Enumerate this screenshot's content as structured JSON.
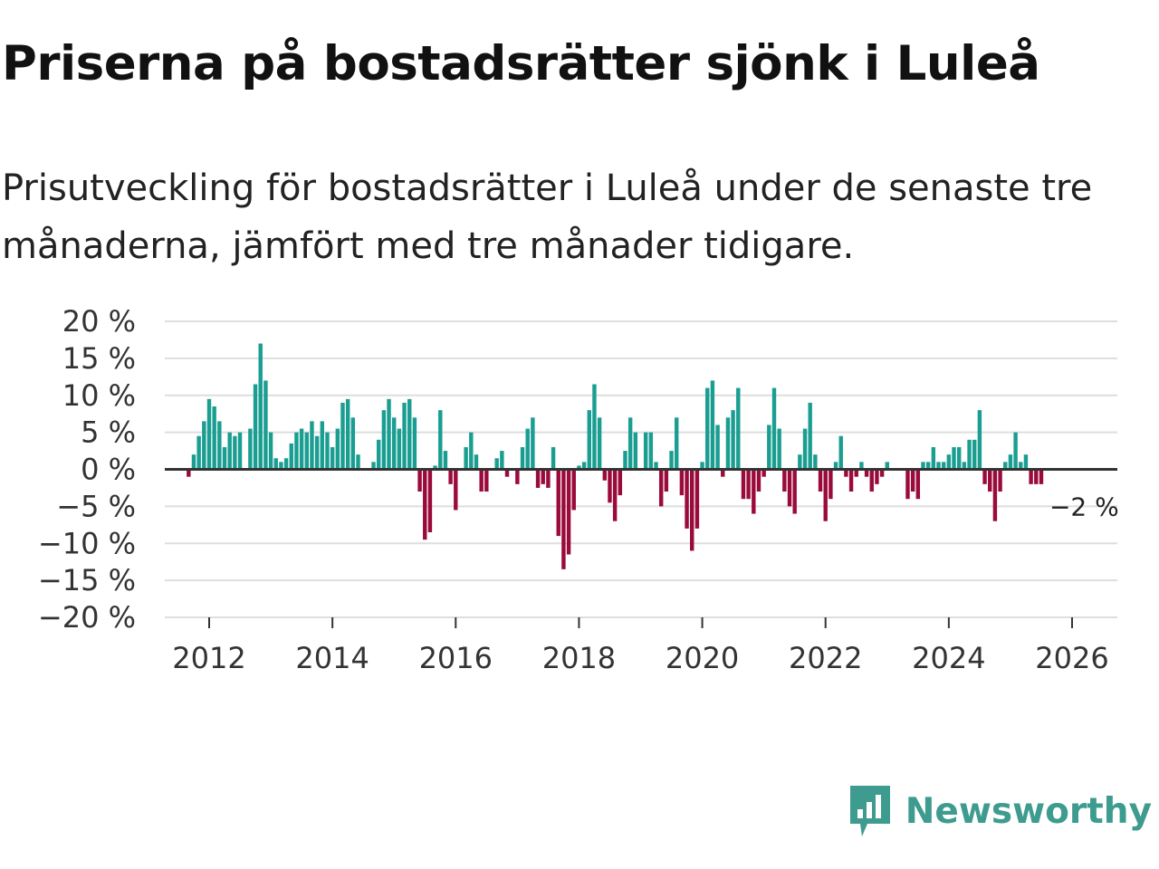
{
  "header": {
    "title": "Priserna på bostadsrätter sjönk i Luleå",
    "subtitle": "Prisutveckling för bostadsrätter i Luleå under de senaste tre månaderna, jämfört med tre månader tidigare."
  },
  "brand": {
    "name": "Newsworthy",
    "icon": "newsworthy-logo-icon"
  },
  "colors": {
    "positive": "#1a9e92",
    "negative": "#9a0b3c",
    "grid": "#dedede",
    "axis": "#333333",
    "brand": "#3e9b8f"
  },
  "chart_data": {
    "type": "bar",
    "title": "Priserna på bostadsrätter sjönk i Luleå",
    "xlabel": "",
    "ylabel": "",
    "ylim": [
      -20,
      20
    ],
    "y_ticks": [
      20,
      15,
      10,
      5,
      0,
      -5,
      -10,
      -15,
      -20
    ],
    "y_tick_labels": [
      "20 %",
      "15 %",
      "10 %",
      "5 %",
      "0 %",
      "−5 %",
      "−10 %",
      "−15 %",
      "−20 %"
    ],
    "x_ticks": [
      2012,
      2014,
      2016,
      2018,
      2020,
      2022,
      2024,
      2026
    ],
    "x_tick_labels": [
      "2012",
      "2014",
      "2016",
      "2018",
      "2020",
      "2022",
      "2024",
      "2026"
    ],
    "x_start": "2011-09",
    "frequency": "monthly",
    "last_label": "−2 %",
    "values": [
      -1,
      2,
      4.5,
      6.5,
      9.5,
      8.5,
      6.5,
      3,
      5,
      4.5,
      5,
      0,
      5.5,
      11.5,
      17,
      12,
      5,
      1.5,
      1,
      1.5,
      3.5,
      5,
      5.5,
      5,
      6.5,
      4.5,
      6.5,
      5,
      3,
      5.5,
      9,
      9.5,
      7,
      2,
      0,
      0,
      1,
      4,
      8,
      9.5,
      7,
      5.5,
      9,
      9.5,
      7,
      -3,
      -9.5,
      -8.5,
      0.5,
      8,
      2.5,
      -2,
      -5.5,
      0,
      3,
      5,
      2,
      -3,
      -3,
      0,
      1.5,
      2.5,
      -1,
      0,
      -2,
      3,
      5.5,
      7,
      -2.5,
      -2,
      -2.5,
      3,
      -9,
      -13.5,
      -11.5,
      -5.5,
      0.5,
      1,
      8,
      11.5,
      7,
      -1.5,
      -4.5,
      -7,
      -3.5,
      2.5,
      7,
      5,
      0,
      5,
      5,
      1,
      -5,
      -3,
      2.5,
      7,
      -3.5,
      -8,
      -11,
      -8,
      1,
      11,
      12,
      6,
      -1,
      7,
      8,
      11,
      -4,
      -4,
      -6,
      -3,
      -1,
      6,
      11,
      5.5,
      -3,
      -5,
      -6,
      2,
      5.5,
      9,
      2,
      -3,
      -7,
      -4,
      1,
      4.5,
      -1,
      -3,
      -1,
      1,
      -1,
      -3,
      -2,
      -1,
      1,
      0,
      0,
      0,
      -4,
      -3,
      -4,
      1,
      1,
      3,
      1,
      1,
      2,
      3,
      3,
      1,
      4,
      4,
      8,
      -2,
      -3,
      -7,
      -3,
      1,
      2,
      5,
      1,
      2,
      -2,
      -2,
      -2
    ]
  }
}
